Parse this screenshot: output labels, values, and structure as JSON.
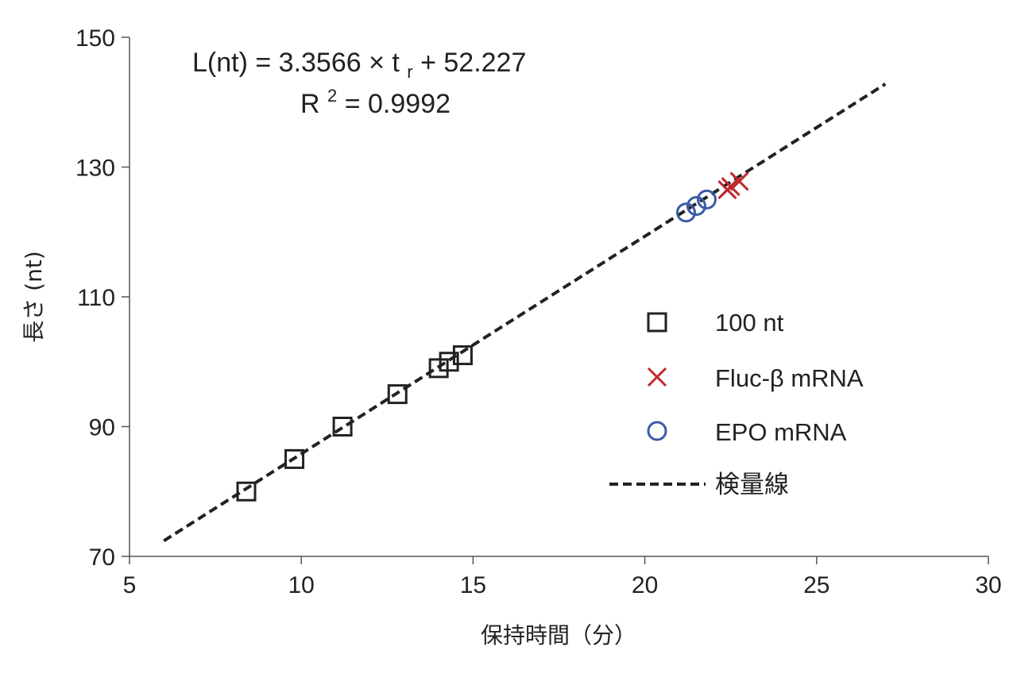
{
  "chart_data": {
    "type": "scatter",
    "xlabel": "保持時間（分）",
    "ylabel": "長さ (nt)",
    "xlim": [
      5,
      30
    ],
    "ylim": [
      70,
      150
    ],
    "xticks": [
      "5",
      "10",
      "15",
      "20",
      "25",
      "30"
    ],
    "yticks": [
      "70",
      "90",
      "110",
      "130",
      "150"
    ],
    "annotation": {
      "equation_prefix": "L(nt) = 3.3566 × t",
      "equation_subscript": "r",
      "equation_suffix": " + 52.227",
      "r2_label": "R",
      "r2_superscript": "2",
      "r2_value": " = 0.9992"
    },
    "legend_position": "right",
    "series": [
      {
        "name": "100 nt",
        "marker": "square",
        "color": "#222222",
        "x": [
          8.4,
          9.8,
          11.2,
          12.8,
          14.0,
          14.3,
          14.7
        ],
        "y": [
          80,
          85,
          90,
          95,
          99,
          100,
          101
        ]
      },
      {
        "name": "Fluc-β mRNA",
        "marker": "x",
        "color": "#c0272d",
        "x": [
          22.4,
          22.5,
          22.75
        ],
        "y": [
          126.5,
          127,
          127.8
        ]
      },
      {
        "name": "EPO mRNA",
        "marker": "circle",
        "color": "#3a5ba8",
        "x": [
          21.2,
          21.5,
          21.8
        ],
        "y": [
          123,
          124,
          125
        ]
      }
    ],
    "fit_line": {
      "name": "検量線",
      "style": "dashed",
      "color": "#222222",
      "x": [
        6,
        27
      ],
      "y": [
        72.4,
        142.8
      ]
    }
  }
}
